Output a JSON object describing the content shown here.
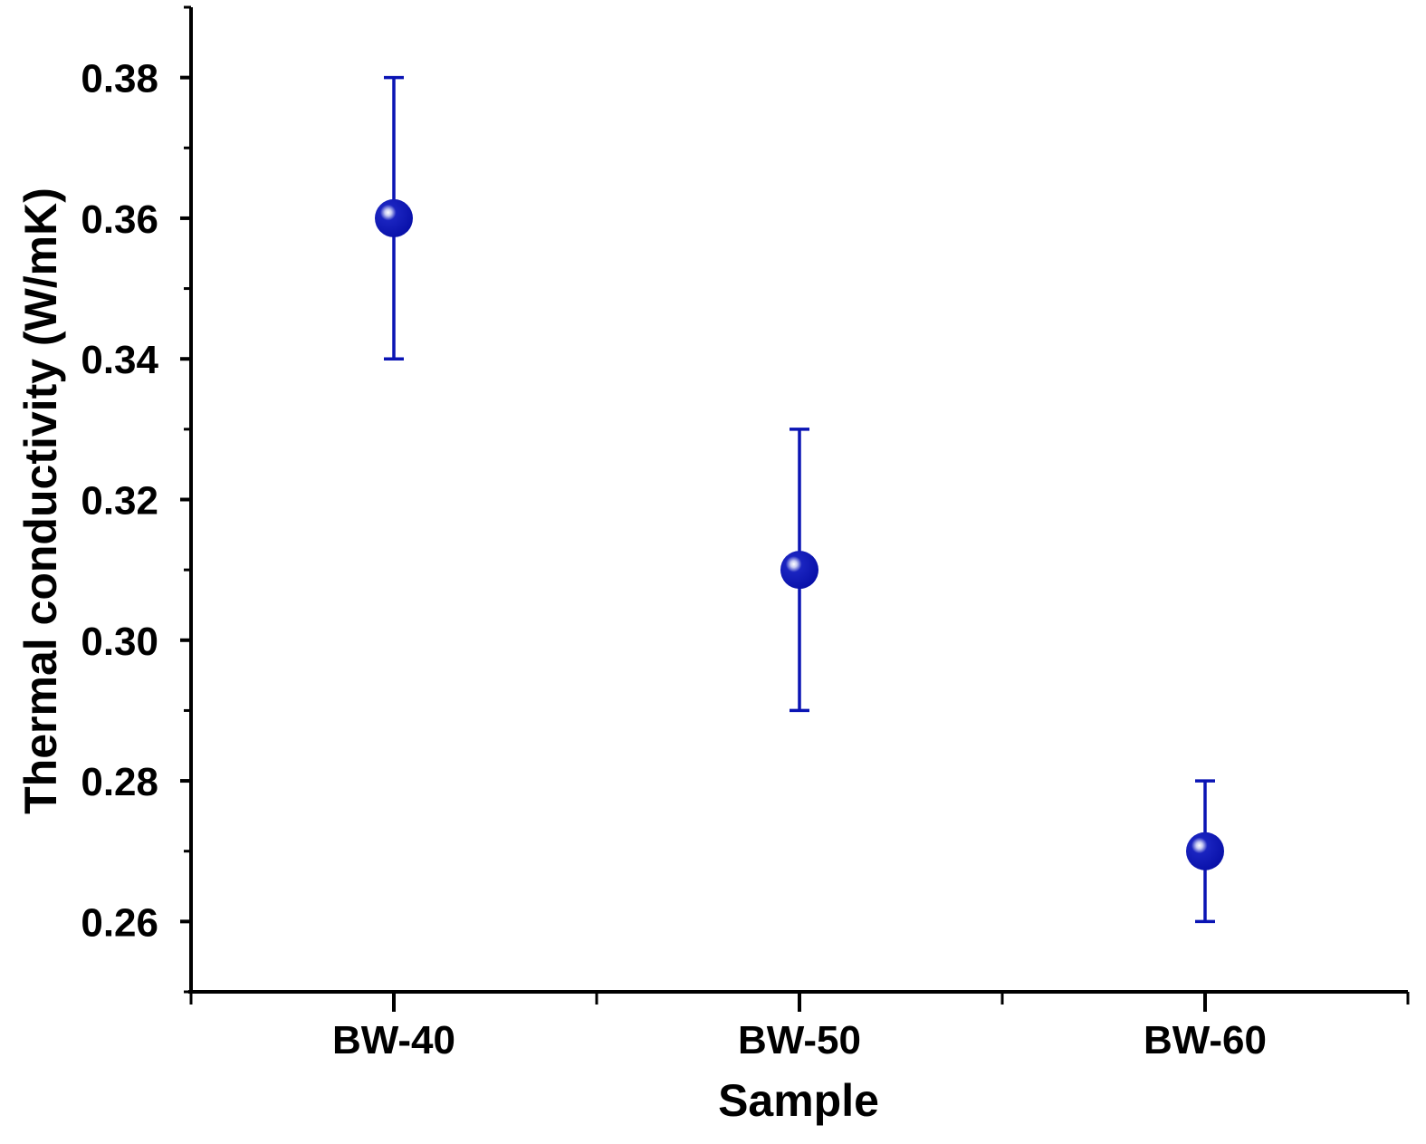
{
  "chart_data": {
    "type": "scatter",
    "title": "",
    "xlabel": "Sample",
    "ylabel": "Thermal conductivity (W/mK)",
    "categories": [
      "BW-40",
      "BW-50",
      "BW-60"
    ],
    "series": [
      {
        "name": "Thermal conductivity",
        "values": [
          0.36,
          0.31,
          0.27
        ],
        "error_upper": [
          0.38,
          0.33,
          0.28
        ],
        "error_lower": [
          0.34,
          0.29,
          0.26
        ],
        "color": "#0a14b4"
      }
    ],
    "ylim": [
      0.25,
      0.39
    ],
    "xlim": [
      0.5,
      3.5
    ],
    "yticks": [
      0.26,
      0.28,
      0.3,
      0.32,
      0.34,
      0.36,
      0.38
    ],
    "ytick_labels": [
      "0.26",
      "0.28",
      "0.30",
      "0.32",
      "0.34",
      "0.36",
      "0.38"
    ],
    "grid": false,
    "legend": "none"
  }
}
